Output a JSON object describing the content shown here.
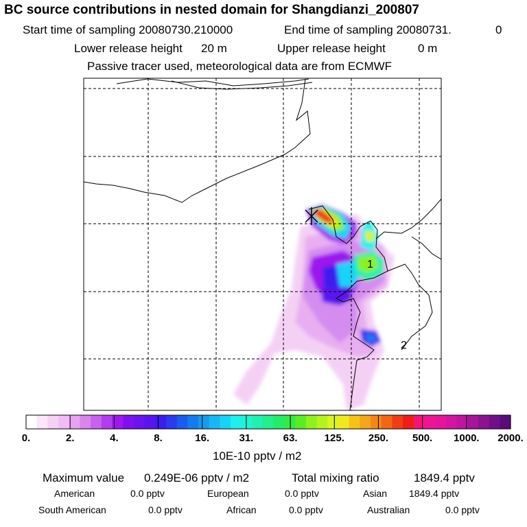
{
  "header": {
    "title": "BC  source contributions in nested domain for Shangdianzi_200807",
    "start_label": "Start time of sampling 20080730.210000",
    "end_label": "End time of sampling 20080731.",
    "end_value": "0",
    "lower_label": "Lower release height",
    "lower_value": "20 m",
    "upper_label": "Upper release height",
    "upper_value": "0 m",
    "note": "Passive tracer used, meteorological data are from ECMWF"
  },
  "map": {
    "site_markers": [
      "1",
      "2"
    ]
  },
  "colorbar": {
    "ticks": [
      "0.",
      "2.",
      "4.",
      "8.",
      "16.",
      "31.",
      "63.",
      "125.",
      "250.",
      "500.",
      "1000.",
      "2000."
    ],
    "unit": "10E-10 pptv / m2",
    "colors": [
      "#ffffff",
      "#fbe6fb",
      "#f6d0f7",
      "#f0bdf3",
      "#e6a3f0",
      "#d885ee",
      "#c862ee",
      "#b23cee",
      "#9d17ee",
      "#8010ee",
      "#6a14ee",
      "#5a14ee",
      "#3c1cee",
      "#2a3aee",
      "#1a5cee",
      "#137cee",
      "#159bf0",
      "#18b6f4",
      "#16d4f8",
      "#1ef0ee",
      "#1ff4d2",
      "#20f0b0",
      "#22ee8c",
      "#23ec66",
      "#34ea44",
      "#5aee22",
      "#8cf11f",
      "#b4f220",
      "#d8f422",
      "#f0e81e",
      "#f6c218",
      "#f6a418",
      "#f48616",
      "#f26614",
      "#f03e14",
      "#f01e14",
      "#f41478",
      "#ee1494",
      "#e6149c",
      "#d414a2",
      "#be14a0",
      "#a8149a",
      "#8c1290",
      "#701088",
      "#5a0c7a"
    ]
  },
  "summary": {
    "max_label": "Maximum value",
    "max_value": "0.249E-06 pptv / m2",
    "total_label": "Total mixing ratio",
    "total_value": "1849.4 pptv",
    "sources": [
      {
        "name": "American",
        "value": "0.0 pptv"
      },
      {
        "name": "European",
        "value": "0.0 pptv"
      },
      {
        "name": "Asian",
        "value": "1849.4 pptv"
      },
      {
        "name": "South American",
        "value": "0.0 pptv"
      },
      {
        "name": "African",
        "value": "0.0 pptv"
      },
      {
        "name": "Australian",
        "value": "0.0 pptv"
      }
    ]
  },
  "chart_data": {
    "type": "heatmap",
    "title": "BC  source contributions in nested domain for Shangdianzi_200807",
    "legend_unit": "10E-10 pptv / m2",
    "legend_levels": [
      0,
      2,
      4,
      8,
      16,
      31,
      63,
      125,
      250,
      500,
      1000,
      2000
    ],
    "max_value": "0.249E-06 pptv / m2",
    "total_mixing_ratio": "1849.4 pptv",
    "grid": true
  }
}
